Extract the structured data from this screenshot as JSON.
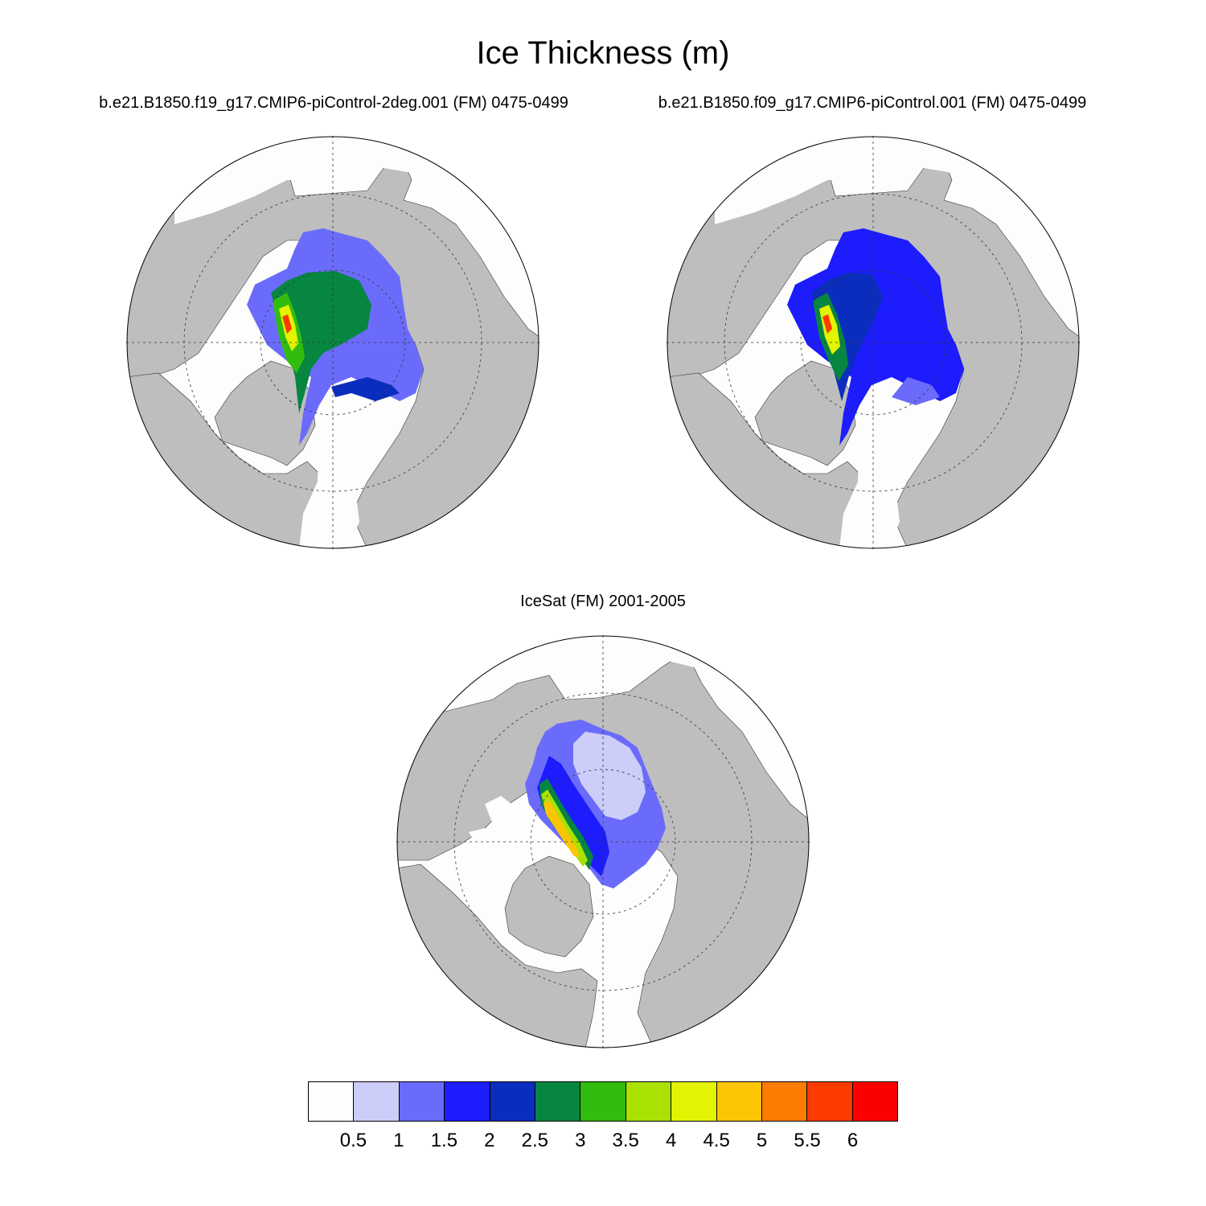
{
  "title": "Ice Thickness (m)",
  "panels": [
    {
      "subtitle": "b.e21.B1850.f19_g17.CMIP6-piControl-2deg.001 (FM) 0475-0499",
      "source": "model"
    },
    {
      "subtitle": "b.e21.B1850.f09_g17.CMIP6-piControl.001 (FM) 0475-0499",
      "source": "model"
    },
    {
      "subtitle": "IceSat (FM) 2001-2005",
      "source": "observation"
    }
  ],
  "projection": "north-polar-stereographic",
  "gridlines": "dashed",
  "land_color": "#bebebe",
  "colorbar": {
    "levels": [
      "0.5",
      "1",
      "1.5",
      "2",
      "2.5",
      "3",
      "3.5",
      "4",
      "4.5",
      "5",
      "5.5",
      "6"
    ],
    "colors": [
      "#fdfdfb",
      "#cccdf9",
      "#6b6bfb",
      "#1c1cfc",
      "#0b2dbd",
      "#078641",
      "#31bd0f",
      "#a9e103",
      "#e2f304",
      "#fcc504",
      "#fc7c03",
      "#fc3b02",
      "#fc0000"
    ]
  }
}
